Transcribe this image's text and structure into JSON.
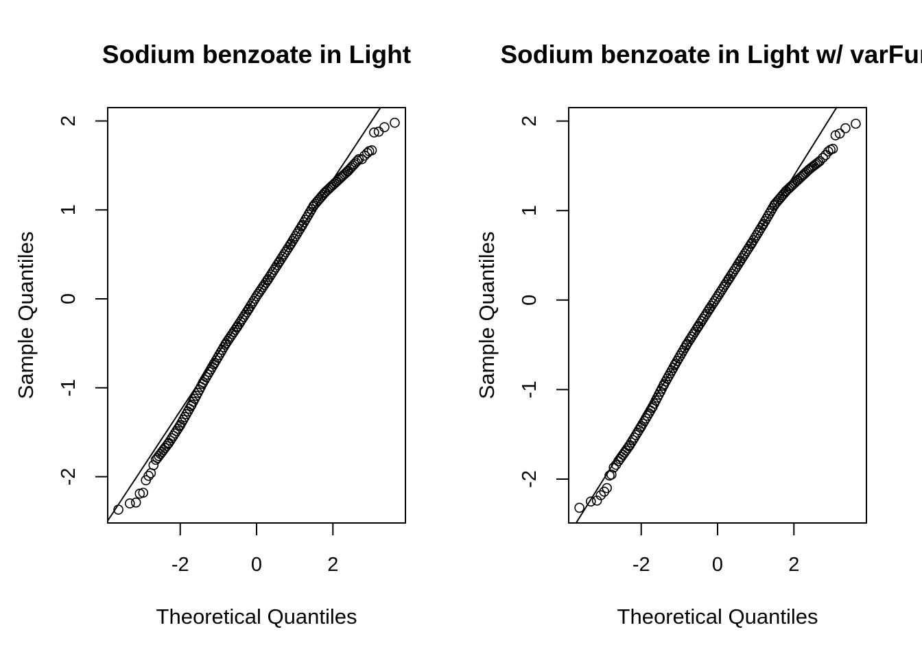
{
  "chart_data": [
    {
      "type": "scatter",
      "title": "Sodium benzoate in Light",
      "xlabel": "Theoretical Quantiles",
      "ylabel": "Sample Quantiles",
      "xlim": [
        -3.9,
        3.9
      ],
      "ylim": [
        -2.52,
        2.15
      ],
      "xticks": [
        -2,
        0,
        2
      ],
      "yticks": [
        -2,
        -1,
        0,
        1,
        2
      ],
      "xtick_labels": [
        "-2",
        "0",
        "2"
      ],
      "ytick_labels": [
        "-2",
        "-1",
        "0",
        "1",
        "2"
      ],
      "reference_line": {
        "intercept": 0.04,
        "slope": 0.65
      },
      "grid": false,
      "marker": "open-circle",
      "tail_points": {
        "x": [
          -3.62,
          -3.32,
          -3.16,
          -3.06,
          -2.97,
          -2.9,
          -2.83,
          -2.77,
          -2.7,
          -2.64,
          2.76,
          2.83,
          2.9,
          2.95,
          3.02,
          3.08,
          3.2,
          3.35,
          3.62
        ],
        "y": [
          -2.37,
          -2.3,
          -2.29,
          -2.19,
          -2.18,
          -2.04,
          -1.99,
          -1.96,
          -1.87,
          -1.81,
          1.57,
          1.61,
          1.64,
          1.66,
          1.67,
          1.87,
          1.88,
          1.93,
          1.98
        ]
      },
      "body_curve": {
        "x": [
          -2.6,
          -2.3,
          -2.0,
          -1.7,
          -1.4,
          -1.1,
          -0.8,
          -0.5,
          -0.2,
          0.0,
          0.3,
          0.6,
          0.9,
          1.2,
          1.5,
          1.8,
          2.1,
          2.4,
          2.7
        ],
        "y": [
          -1.79,
          -1.62,
          -1.42,
          -1.19,
          -0.94,
          -0.72,
          -0.5,
          -0.31,
          -0.11,
          0.03,
          0.22,
          0.42,
          0.62,
          0.83,
          1.05,
          1.2,
          1.32,
          1.44,
          1.58
        ]
      }
    },
    {
      "type": "scatter",
      "title": "Sodium benzoate in Light w/ varFun",
      "xlabel": "Theoretical Quantiles",
      "ylabel": "Sample Quantiles",
      "xlim": [
        -3.9,
        3.9
      ],
      "ylim": [
        -2.49,
        2.15
      ],
      "xticks": [
        -2,
        0,
        2
      ],
      "yticks": [
        -2,
        -1,
        0,
        1,
        2
      ],
      "xtick_labels": [
        "-2",
        "0",
        "2"
      ],
      "ytick_labels": [
        "-2",
        "-1",
        "0",
        "1",
        "2"
      ],
      "reference_line": {
        "intercept": 0.03,
        "slope": 0.68
      },
      "grid": false,
      "marker": "open-circle",
      "tail_points": {
        "x": [
          -3.62,
          -3.32,
          -3.16,
          -3.06,
          -2.97,
          -2.9,
          -2.83,
          -2.78,
          -2.72,
          -2.66,
          2.76,
          2.83,
          2.9,
          2.96,
          3.02,
          3.09,
          3.2,
          3.35,
          3.62
        ],
        "y": [
          -2.32,
          -2.25,
          -2.24,
          -2.18,
          -2.14,
          -2.1,
          -1.96,
          -1.95,
          -1.87,
          -1.84,
          1.59,
          1.62,
          1.66,
          1.68,
          1.69,
          1.84,
          1.86,
          1.92,
          1.97
        ]
      },
      "body_curve": {
        "x": [
          -2.6,
          -2.3,
          -2.0,
          -1.7,
          -1.4,
          -1.1,
          -0.8,
          -0.5,
          -0.2,
          0.0,
          0.3,
          0.6,
          0.9,
          1.2,
          1.5,
          1.8,
          2.1,
          2.4,
          2.7
        ],
        "y": [
          -1.8,
          -1.62,
          -1.41,
          -1.19,
          -0.94,
          -0.71,
          -0.49,
          -0.29,
          -0.09,
          0.04,
          0.24,
          0.44,
          0.64,
          0.85,
          1.07,
          1.22,
          1.34,
          1.46,
          1.56
        ]
      }
    }
  ]
}
